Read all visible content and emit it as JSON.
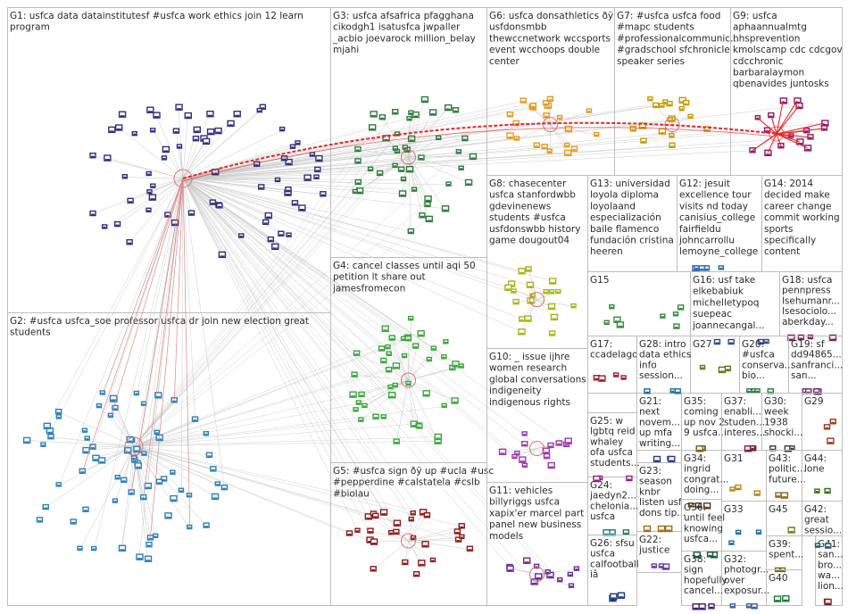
{
  "graph": {
    "edge_color": "#c8c8c8",
    "highlight_edge_color": "#e8262a",
    "groups": [
      {
        "id": "G1",
        "label": [
          "G1: usfca data datainstitutesf #usfca work ethics join 12 learn",
          "program"
        ],
        "color": "#2f2f7a",
        "node_count": 70
      },
      {
        "id": "G2",
        "label": [
          "G2: #usfca usfca_soe professor usfca dr join new election great",
          "students"
        ],
        "color": "#2c7fb8",
        "node_count": 70
      },
      {
        "id": "G3",
        "label": [
          "G3: usfca afsafrica pfagghana",
          "cikodgh1 isatusfca jwpaller",
          "_acbio joevarock million_belay",
          "mjahi"
        ],
        "color": "#2f7a3a",
        "node_count": 45
      },
      {
        "id": "G4",
        "label": [
          "G4: cancel classes until aqi 50",
          "petition lt share out",
          "jamesfromecon"
        ],
        "color": "#3aa53a",
        "node_count": 45
      },
      {
        "id": "G5",
        "label": [
          "G5: #usfca sign ðÿ up #ucla #usc",
          "#pepperdine #calstatela #cslb",
          "#biolau"
        ],
        "color": "#8b1a1a",
        "node_count": 28
      },
      {
        "id": "G6",
        "label": [
          "G6: usfca donsathletics ðÿ",
          "usfdonsmbb",
          "thewccnetwork wccsports",
          "event wcchoops double",
          "center"
        ],
        "color": "#e69a1c",
        "node_count": 22
      },
      {
        "id": "G7",
        "label": [
          "G7: #usfca usfca food",
          "#mapc students",
          "#professionalcommunic...",
          "#gradschool sfchronicle",
          "speaker series"
        ],
        "color": "#c79a00",
        "node_count": 18
      },
      {
        "id": "G8",
        "label": [
          "G8: chasecenter",
          "usfca stanfordwbb",
          "gdevinenews",
          "students #usfca",
          "usfdonswbb history",
          "game dougout04"
        ],
        "color": "#a8b41a",
        "node_count": 20
      },
      {
        "id": "G9",
        "label": [
          "G9: usfca",
          "aphaannualmtg",
          "hhsprevention",
          "kmolscamp cdc cdcgov",
          "cdcchronic",
          "barbaralaymon",
          "qbenavides juntosks"
        ],
        "color": "#8a1a6a",
        "node_count": 16
      },
      {
        "id": "G10",
        "label": [
          "G10: _ issue ijhre",
          "women research",
          "global conversations",
          "indigeneity",
          "indigenous rights"
        ],
        "color": "#9a3ab0",
        "node_count": 14
      },
      {
        "id": "G11",
        "label": [
          "G11: vehicles",
          "billyriggs usfca",
          "xapix'er marcel part",
          "panel new business",
          "models"
        ],
        "color": "#6a2a9a",
        "node_count": 12
      },
      {
        "id": "G12",
        "label": [
          "G12: jesuit",
          "excellence tour",
          "visits nd today",
          "canisius_college",
          "fairfieldu",
          "johncarrollu",
          "lemoyne_college"
        ],
        "color": "#2f6aa8",
        "node_count": 6
      },
      {
        "id": "G13",
        "label": [
          "G13: universidad",
          "loyola diploma",
          "loyolaand",
          "especialización",
          "baile flamenco",
          "fundación cristina",
          "heeren"
        ],
        "color": "#1a6a5a",
        "node_count": 0
      },
      {
        "id": "G14",
        "label": [
          "G14: 2014",
          "decided make",
          "career change",
          "commit working",
          "sports",
          "specifically",
          "content"
        ],
        "color": "#1a5a8a",
        "node_count": 0
      },
      {
        "id": "G15",
        "label": [
          "G15"
        ],
        "color": "#3a8a3a",
        "node_count": 8
      },
      {
        "id": "G16",
        "label": [
          "G16: usf take",
          "elkebabiuk",
          "michelletypoq",
          "suepeac",
          "joannecangal..."
        ],
        "color": "#2a4a8a",
        "node_count": 4
      },
      {
        "id": "G17",
        "label": [
          "G17:",
          "ccadelago"
        ],
        "color": "#a01a2a",
        "node_count": 4
      },
      {
        "id": "G18",
        "label": [
          "G18: usfca",
          "pennpress",
          "lsehumanr...",
          "lsesociolo...",
          "aberkday..."
        ],
        "color": "#8a1a5a",
        "node_count": 4
      },
      {
        "id": "G19",
        "label": [
          "G19: sf",
          "dd94865...",
          "sanfranci...",
          "san..."
        ],
        "color": "#6a2a6a",
        "node_count": 4
      },
      {
        "id": "G20",
        "label": [
          "G20:",
          "#usfca",
          "conserva...",
          "bio..."
        ],
        "color": "#2a7a3a",
        "node_count": 4
      },
      {
        "id": "G21",
        "label": [
          "G21:",
          "next",
          "novem...",
          "up mfa",
          "writing..."
        ],
        "color": "#2a3a8a",
        "node_count": 3
      },
      {
        "id": "G22",
        "label": [
          "G22:",
          "justice"
        ],
        "color": "#6a3a9a",
        "node_count": 3
      },
      {
        "id": "G23",
        "label": [
          "G23:",
          "season",
          "knbr",
          "listen usf",
          "dons tip..."
        ],
        "color": "#a06a1a",
        "node_count": 3
      },
      {
        "id": "G24",
        "label": [
          "G24:",
          "jaedyn2...",
          "chelonia...",
          "usfca"
        ],
        "color": "#1a7a7a",
        "node_count": 3
      },
      {
        "id": "G25",
        "label": [
          "G25: w",
          "lgbtq reid",
          "whaley",
          "ofa usfca",
          "students..."
        ],
        "color": "#9a1a7a",
        "node_count": 3
      },
      {
        "id": "G26",
        "label": [
          "G26: sfsu",
          "usfca",
          "calfootball",
          "iâ"
        ],
        "color": "#1a3a7a",
        "node_count": 3
      },
      {
        "id": "G27",
        "label": [
          "G27"
        ],
        "color": "#5a7a1a",
        "node_count": 3
      },
      {
        "id": "G28",
        "label": [
          "G28: intro",
          "data ethics",
          "info",
          "session..."
        ],
        "color": "#1a6a9a",
        "node_count": 3
      },
      {
        "id": "G29",
        "label": [
          "G29"
        ],
        "color": "#a03a1a",
        "node_count": 3
      },
      {
        "id": "G30",
        "label": [
          "G30:",
          "week",
          "1938",
          "shocki..."
        ],
        "color": "#3a3a3a",
        "node_count": 3
      },
      {
        "id": "G31",
        "label": [
          "G31"
        ],
        "color": "#b08a1a",
        "node_count": 3
      },
      {
        "id": "G32",
        "label": [
          "G32:",
          "photogr...",
          "over",
          "exposur..."
        ],
        "color": "#3a5a9a",
        "node_count": 3
      },
      {
        "id": "G33",
        "label": [
          "G33"
        ],
        "color": "#1a6aa8",
        "node_count": 3
      },
      {
        "id": "G34",
        "label": [
          "G34:",
          "ingrid",
          "congrat...",
          "doing..."
        ],
        "color": "#5a3a1a",
        "node_count": 3
      },
      {
        "id": "G35",
        "label": [
          "G35:",
          "coming",
          "up nov 2",
          "9 usfca..."
        ],
        "color": "#7a5a1a",
        "node_count": 3
      },
      {
        "id": "G36",
        "label": [
          "G36:",
          "until feel",
          "knowing",
          "usfca..."
        ],
        "color": "#1a5a3a",
        "node_count": 3
      },
      {
        "id": "G37",
        "label": [
          "G37:",
          "enabli...",
          "studen...",
          "interes..."
        ],
        "color": "#7a1a3a",
        "node_count": 3
      },
      {
        "id": "G38",
        "label": [
          "G38:",
          "sign",
          "hopefully",
          "cancel..."
        ],
        "color": "#3a1a7a",
        "node_count": 3
      },
      {
        "id": "G39",
        "label": [
          "G39:",
          "spent..."
        ],
        "color": "#6a6a1a",
        "node_count": 2
      },
      {
        "id": "G40",
        "label": [
          "G40"
        ],
        "color": "#1a7a3a",
        "node_count": 2
      },
      {
        "id": "G41",
        "label": [
          "G41:",
          "san...",
          "bro...",
          "wa...",
          "lion..."
        ],
        "color": "#7a1a1a",
        "node_count": 2
      },
      {
        "id": "G43",
        "label": [
          "G43:",
          "politic...",
          "future..."
        ],
        "color": "#8a6a1a",
        "node_count": 2
      },
      {
        "id": "G44",
        "label": [
          "G44:",
          "lone"
        ],
        "color": "#3a6a1a",
        "node_count": 2
      },
      {
        "id": "G45",
        "label": [
          "G45"
        ],
        "color": "#6a8a1a",
        "node_count": 2
      },
      {
        "id": "G42",
        "label": [
          "G42:",
          "great",
          "sessio..."
        ],
        "color": "#1a5a6a",
        "node_count": 2
      }
    ]
  }
}
